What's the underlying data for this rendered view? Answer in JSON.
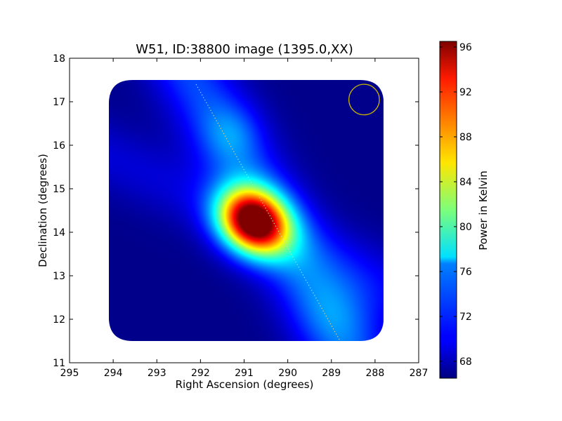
{
  "chart_data": {
    "type": "heatmap",
    "title": "W51, ID:38800 image (1395.0,XX)",
    "xlabel": "Right Ascension (degrees)",
    "ylabel": "Declination (degrees)",
    "xlim": [
      295,
      287
    ],
    "ylim": [
      11,
      18
    ],
    "x_reversed": true,
    "xticks": [
      "295",
      "294",
      "293",
      "292",
      "291",
      "290",
      "289",
      "288",
      "287"
    ],
    "yticks": [
      "11",
      "12",
      "13",
      "14",
      "15",
      "16",
      "17",
      "18"
    ],
    "colormap": "jet",
    "colorbar": {
      "label": "Power in Kelvin",
      "min": 66.5,
      "max": 96.5,
      "ticks": [
        "68",
        "72",
        "76",
        "80",
        "84",
        "88",
        "92",
        "96"
      ]
    },
    "image_extent": {
      "ra": [
        294.1,
        287.8
      ],
      "dec": [
        11.5,
        17.5
      ]
    },
    "background_level_k": 68,
    "source_peak": {
      "ra": 290.8,
      "dec": 14.25,
      "value_k": 96.5
    },
    "ridge_line": {
      "start": {
        "ra": 292.1,
        "dec": 17.4
      },
      "end": {
        "ra": 288.8,
        "dec": 11.5
      }
    },
    "beam_circle": {
      "ra": 288.25,
      "dec": 17.05,
      "radius_deg": 0.35,
      "color": "#c8b400"
    }
  }
}
